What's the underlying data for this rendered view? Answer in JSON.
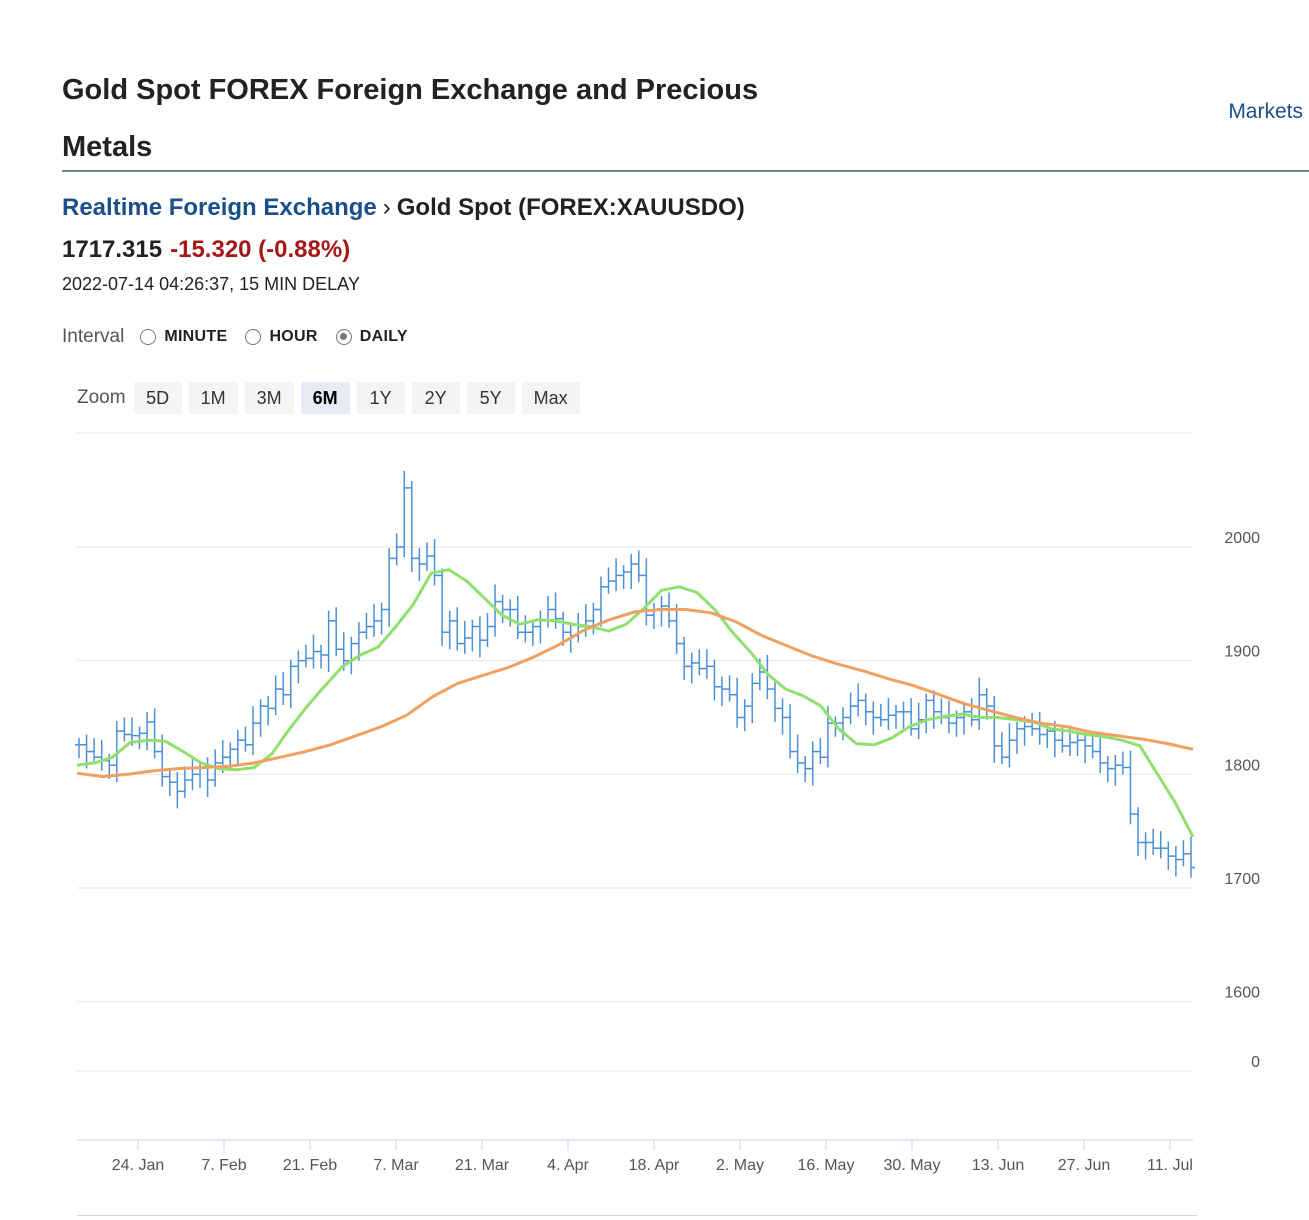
{
  "header": {
    "title": "Gold Spot FOREX Foreign Exchange and Precious Metals",
    "markets_link": "Markets"
  },
  "breadcrumb": {
    "parent": "Realtime Foreign Exchange",
    "separator": "›",
    "current": "Gold Spot (FOREX:XAUUSDO)"
  },
  "quote": {
    "price": "1717.315",
    "change": "-15.320 (-0.88%)",
    "timestamp": "2022-07-14 04:26:37, 15 MIN DELAY"
  },
  "interval": {
    "label": "Interval",
    "options": [
      {
        "label": "MINUTE",
        "checked": false
      },
      {
        "label": "HOUR",
        "checked": false
      },
      {
        "label": "DAILY",
        "checked": true
      }
    ]
  },
  "zoom": {
    "label": "Zoom",
    "buttons": [
      {
        "label": "5D",
        "active": false
      },
      {
        "label": "1M",
        "active": false
      },
      {
        "label": "3M",
        "active": false
      },
      {
        "label": "6M",
        "active": true
      },
      {
        "label": "1Y",
        "active": false
      },
      {
        "label": "2Y",
        "active": false
      },
      {
        "label": "5Y",
        "active": false
      },
      {
        "label": "Max",
        "active": false
      }
    ]
  },
  "colors": {
    "link": "#1a4f8a",
    "change_negative": "#a51818",
    "ohlc": "#4a90d9",
    "ma_short": "#90e070",
    "ma_long": "#f0a060",
    "grid": "#e6e6e6"
  },
  "chart_data": {
    "type": "line",
    "title": "",
    "xlabel": "",
    "ylabel": "",
    "ylim": [
      1550,
      2100
    ],
    "grid": true,
    "y_ticks": [
      "2000",
      "1900",
      "1800",
      "1700",
      "1600"
    ],
    "volume_tick": "0",
    "x_ticks": [
      "24. Jan",
      "7. Feb",
      "21. Feb",
      "7. Mar",
      "21. Mar",
      "4. Apr",
      "18. Apr",
      "2. May",
      "16. May",
      "30. May",
      "13. Jun",
      "27. Jun",
      "11. Jul"
    ],
    "series": [
      {
        "kind": "ohlc",
        "values": [
          1826,
          1820,
          1815,
          1812,
          1808,
          1838,
          1835,
          1834,
          1836,
          1846,
          1820,
          1798,
          1793,
          1785,
          1795,
          1800,
          1806,
          1795,
          1810,
          1815,
          1822,
          1830,
          1826,
          1845,
          1860,
          1858,
          1875,
          1870,
          1895,
          1900,
          1902,
          1908,
          1905,
          1935,
          1910,
          1900,
          1915,
          1925,
          1930,
          1935,
          1945,
          1990,
          2000,
          2052,
          1990,
          1985,
          1992,
          1975,
          1925,
          1935,
          1915,
          1920,
          1930,
          1918,
          1930,
          1952,
          1945,
          1945,
          1925,
          1925,
          1930,
          1935,
          1945,
          1937,
          1925,
          1922,
          1930,
          1935,
          1945,
          1965,
          1970,
          1975,
          1978,
          1985,
          1975,
          1940,
          1945,
          1948,
          1935,
          1915,
          1895,
          1898,
          1893,
          1895,
          1877,
          1875,
          1870,
          1850,
          1860,
          1880,
          1890,
          1875,
          1858,
          1850,
          1820,
          1810,
          1805,
          1820,
          1815,
          1845,
          1845,
          1850,
          1860,
          1865,
          1855,
          1850,
          1848,
          1852,
          1855,
          1855,
          1840,
          1848,
          1865,
          1855,
          1850,
          1845,
          1850,
          1855,
          1848,
          1870,
          1860,
          1825,
          1815,
          1830,
          1840,
          1842,
          1840,
          1835,
          1838,
          1830,
          1825,
          1828,
          1830,
          1825,
          1820,
          1810,
          1805,
          1808,
          1806,
          1765,
          1740,
          1740,
          1735,
          1735,
          1728,
          1725,
          1730,
          1718
        ]
      },
      {
        "kind": "moving-average-short",
        "values": [
          1808,
          1810,
          1815,
          1828,
          1830,
          1829,
          1820,
          1810,
          1805,
          1804,
          1806,
          1818,
          1840,
          1860,
          1878,
          1895,
          1905,
          1912,
          1930,
          1950,
          1977,
          1980,
          1970,
          1955,
          1940,
          1932,
          1936,
          1935,
          1932,
          1930,
          1926,
          1932,
          1946,
          1962,
          1965,
          1960,
          1945,
          1925,
          1908,
          1888,
          1875,
          1869,
          1860,
          1840,
          1827,
          1826,
          1832,
          1842,
          1848,
          1851,
          1853,
          1850,
          1850,
          1848,
          1846,
          1840,
          1838,
          1835,
          1833,
          1830,
          1825,
          1800,
          1775,
          1745
        ]
      },
      {
        "kind": "moving-average-long",
        "values": [
          1801,
          1798,
          1800,
          1803,
          1805,
          1806,
          1807,
          1810,
          1815,
          1820,
          1826,
          1834,
          1842,
          1852,
          1868,
          1880,
          1887,
          1894,
          1903,
          1914,
          1927,
          1936,
          1943,
          1945,
          1945,
          1942,
          1934,
          1922,
          1913,
          1904,
          1897,
          1891,
          1884,
          1878,
          1870,
          1862,
          1856,
          1850,
          1845,
          1842,
          1837,
          1834,
          1831,
          1827,
          1822
        ]
      }
    ]
  }
}
